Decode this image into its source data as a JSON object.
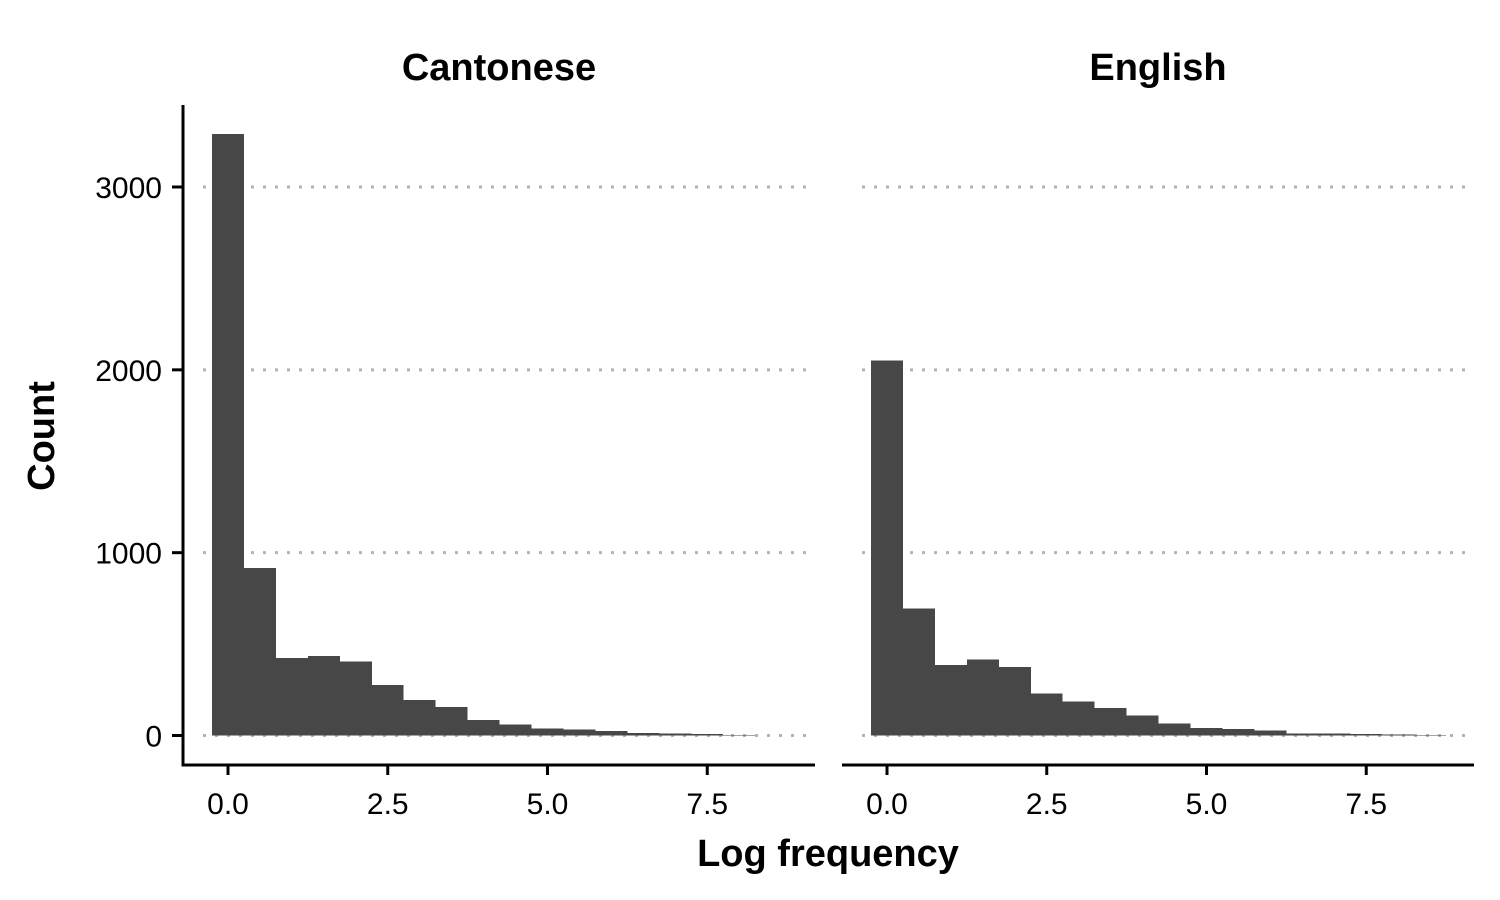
{
  "chart_data": {
    "type": "bar",
    "subtype": "histogram-facets",
    "xlabel": "Log frequency",
    "ylabel": "Count",
    "ylim": [
      0,
      3300
    ],
    "xlim": [
      -0.35,
      9.0
    ],
    "y_ticks": [
      0,
      1000,
      2000,
      3000
    ],
    "y_tick_labels": [
      "0",
      "1000",
      "2000",
      "3000"
    ],
    "x_ticks": [
      0,
      2.5,
      5,
      7.5
    ],
    "x_tick_labels": [
      "0.0",
      "2.5",
      "5.0",
      "7.5"
    ],
    "grid": "horizontal-dotted",
    "bar_color": "#474747",
    "bin_width": 0.5,
    "facets": [
      {
        "title": "Cantonese",
        "bin_centers": [
          0,
          0.5,
          1,
          1.5,
          2,
          2.5,
          3,
          3.5,
          4,
          4.5,
          5,
          5.5,
          6,
          6.5,
          7,
          7.5,
          8
        ],
        "values": [
          3290,
          915,
          425,
          435,
          405,
          275,
          195,
          155,
          85,
          60,
          38,
          32,
          25,
          15,
          10,
          8,
          3
        ]
      },
      {
        "title": "English",
        "bin_centers": [
          0,
          0.5,
          1,
          1.5,
          2,
          2.5,
          3,
          3.5,
          4,
          4.5,
          5,
          5.5,
          6,
          6.5,
          7,
          7.5,
          8,
          8.5
        ],
        "values": [
          2050,
          695,
          385,
          415,
          375,
          230,
          185,
          150,
          110,
          65,
          40,
          35,
          28,
          12,
          10,
          8,
          5,
          3
        ]
      }
    ]
  }
}
